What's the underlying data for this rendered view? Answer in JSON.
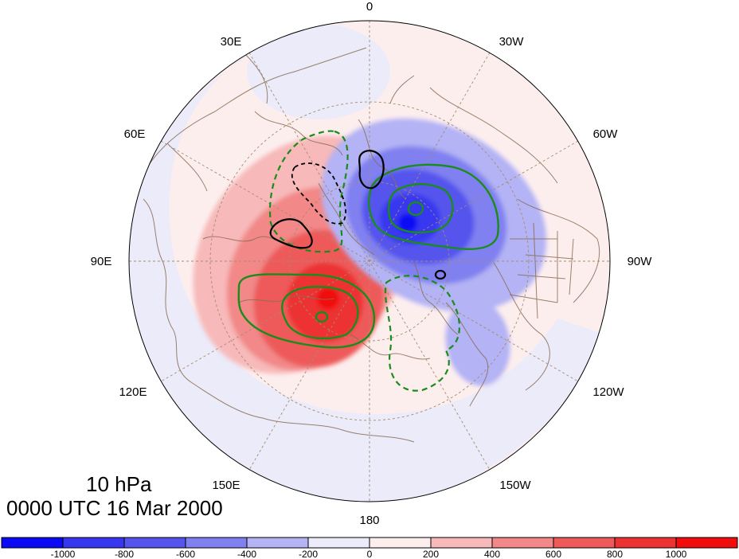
{
  "title": {
    "level": "10 hPa",
    "time": "0000 UTC 16 Mar 2000"
  },
  "longitude_labels": {
    "top": "0",
    "upper_left": "30E",
    "upper_right": "30W",
    "mid_upper_left": "60E",
    "mid_upper_right": "60W",
    "left": "90E",
    "right": "90W",
    "lower_left": "120E",
    "lower_right": "120W",
    "bottom_left": "150E",
    "bottom_right": "150W",
    "bottom": "180"
  },
  "colorbar": {
    "ticks": [
      "-1000",
      "-800",
      "-600",
      "-400",
      "-200",
      "0",
      "200",
      "400",
      "600",
      "800",
      "1000"
    ],
    "colors": [
      "#0a0af5",
      "#3737f0",
      "#5555ee",
      "#8080f0",
      "#b3b3f5",
      "#ebebfa",
      "#fdeeee",
      "#f7b9b9",
      "#f28888",
      "#ee5a5a",
      "#ec3232",
      "#f20d0d"
    ]
  },
  "styles": {
    "ocean_fill": "#fdeeee",
    "coastline": "#8a6d55",
    "grid": "#a68c6e",
    "contour_green": "#1a8c1a",
    "contour_black": "#000000"
  }
}
